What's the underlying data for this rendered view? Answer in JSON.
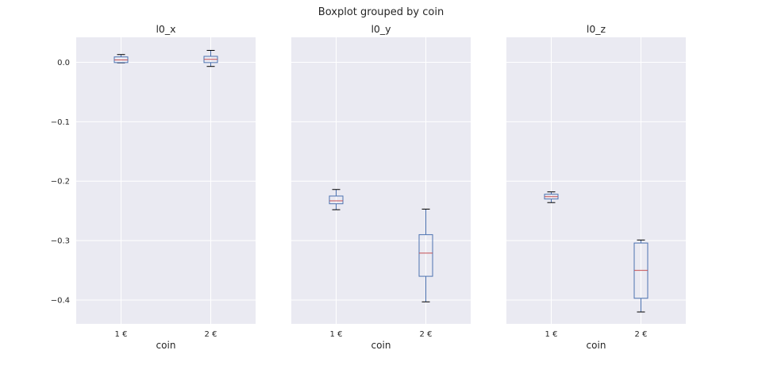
{
  "chart_data": {
    "type": "box",
    "title": "Boxplot grouped by coin",
    "categories": [
      "1 €",
      "2 €"
    ],
    "xlabel": "coin",
    "ylim": [
      -0.44,
      0.042
    ],
    "yticks": [
      0.0,
      -0.1,
      -0.2,
      -0.3,
      -0.4
    ],
    "ytick_labels": [
      "0.0",
      "−0.1",
      "−0.2",
      "−0.3",
      "−0.4"
    ],
    "sharey": true,
    "grid": true,
    "colors": {
      "background": "#eaeaf2",
      "grid": "#ffffff",
      "box": "#4c72b0",
      "median": "#c44e52",
      "whisker_cap": "#000000"
    },
    "panels": [
      {
        "title": "l0_x",
        "boxes": [
          {
            "category": "1 €",
            "whislo": -0.001,
            "q1": -0.0005,
            "median": 0.004,
            "q3": 0.009,
            "whishi": 0.013
          },
          {
            "category": "2 €",
            "whislo": -0.007,
            "q1": -0.0005,
            "median": 0.005,
            "q3": 0.01,
            "whishi": 0.02
          }
        ]
      },
      {
        "title": "l0_y",
        "boxes": [
          {
            "category": "1 €",
            "whislo": -0.248,
            "q1": -0.238,
            "median": -0.233,
            "q3": -0.225,
            "whishi": -0.214
          },
          {
            "category": "2 €",
            "whislo": -0.403,
            "q1": -0.36,
            "median": -0.321,
            "q3": -0.29,
            "whishi": -0.247
          }
        ]
      },
      {
        "title": "l0_z",
        "boxes": [
          {
            "category": "1 €",
            "whislo": -0.236,
            "q1": -0.23,
            "median": -0.226,
            "q3": -0.222,
            "whishi": -0.218
          },
          {
            "category": "2 €",
            "whislo": -0.42,
            "q1": -0.397,
            "median": -0.35,
            "q3": -0.304,
            "whishi": -0.299
          }
        ]
      }
    ]
  }
}
